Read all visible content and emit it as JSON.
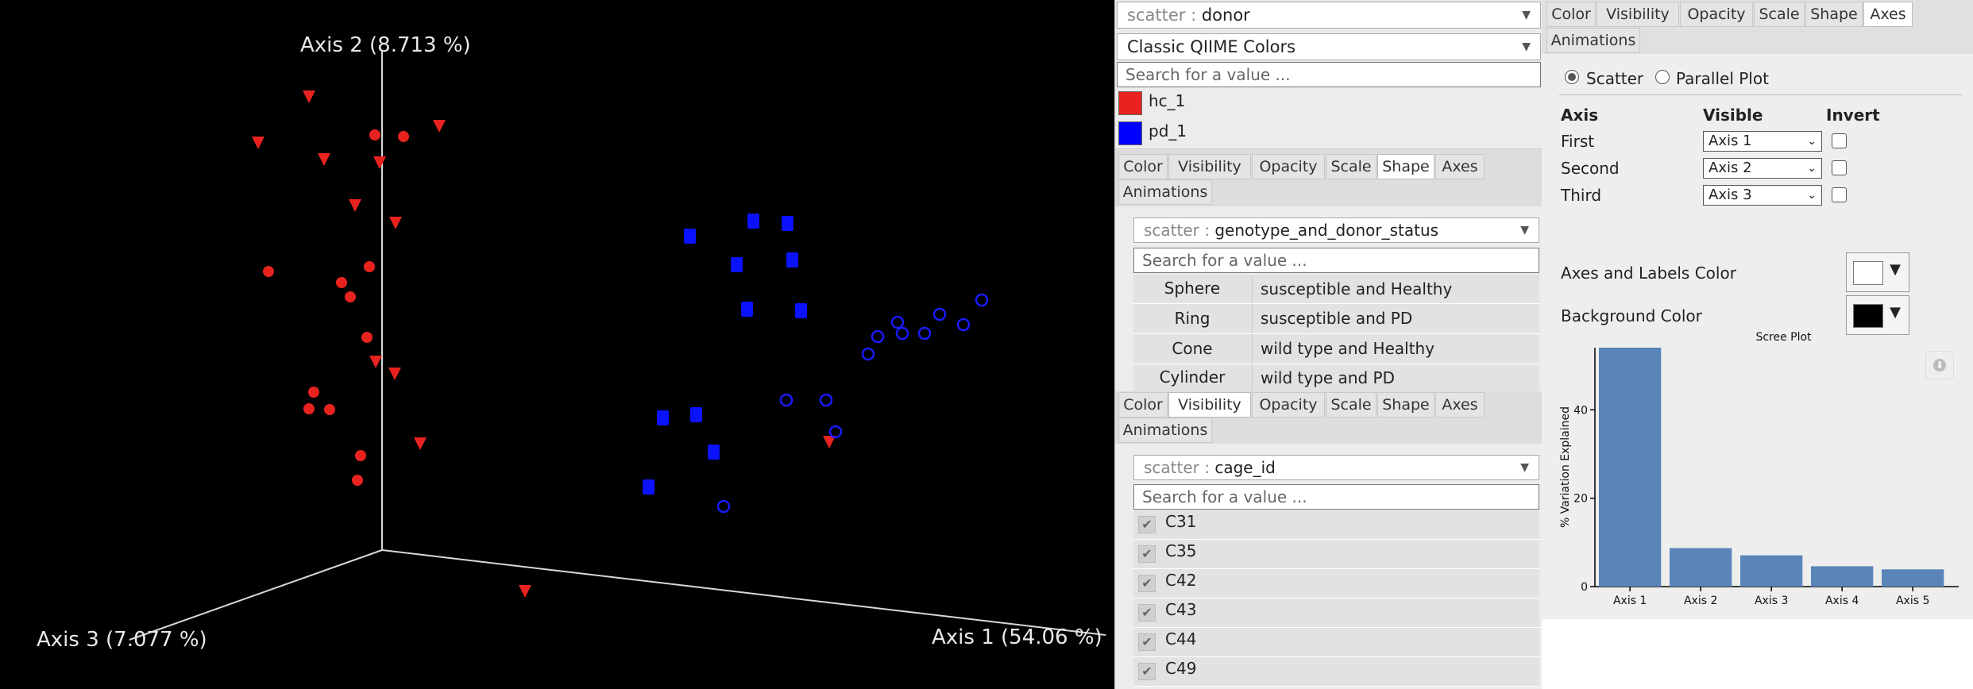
{
  "plot": {
    "axis1_label": "Axis 1 (54.06 %)",
    "axis2_label": "Axis 2 (8.713 %)",
    "axis3_label": "Axis 3 (7.077 %)"
  },
  "color_panel": {
    "metadata_prefix": "scatter",
    "metadata_value": "donor",
    "colormap": "Classic QIIME Colors",
    "search_placeholder": "Search for a value ...",
    "legend": [
      {
        "label": "hc_1",
        "color": "#e8231f"
      },
      {
        "label": "pd_1",
        "color": "#0000ff"
      }
    ]
  },
  "tabs": [
    "Color",
    "Visibility",
    "Opacity",
    "Scale",
    "Shape",
    "Axes",
    "Animations"
  ],
  "shape_panel": {
    "metadata_prefix": "scatter",
    "metadata_value": "genotype_and_donor_status",
    "search_placeholder": "Search for a value ...",
    "rows": [
      {
        "shape": "Sphere",
        "value": "susceptible and Healthy"
      },
      {
        "shape": "Ring",
        "value": "susceptible and PD"
      },
      {
        "shape": "Cone",
        "value": "wild type and Healthy"
      },
      {
        "shape": "Cylinder",
        "value": "wild type and PD"
      }
    ]
  },
  "visibility_panel": {
    "metadata_prefix": "scatter",
    "metadata_value": "cage_id",
    "search_placeholder": "Search for a value ...",
    "items": [
      "C31",
      "C35",
      "C42",
      "C43",
      "C44",
      "C49"
    ]
  },
  "axes_panel": {
    "mode_scatter": "Scatter",
    "mode_parallel": "Parallel Plot",
    "col_axis": "Axis",
    "col_visible": "Visible",
    "col_invert": "Invert",
    "rows": [
      {
        "label": "First",
        "value": "Axis 1"
      },
      {
        "label": "Second",
        "value": "Axis 2"
      },
      {
        "label": "Third",
        "value": "Axis 3"
      }
    ],
    "axes_color_label": "Axes and Labels Color",
    "axes_color": "#ffffff",
    "bg_color_label": "Background Color",
    "bg_color": "#000000"
  },
  "chart_data": {
    "type": "bar",
    "title": "Scree Plot",
    "ylabel": "% Variation Explained",
    "xlabel": "",
    "categories": [
      "Axis 1",
      "Axis 2",
      "Axis 3",
      "Axis 4",
      "Axis 5"
    ],
    "values": [
      54.06,
      8.713,
      7.077,
      4.6,
      3.9
    ],
    "ylim": [
      0,
      54.06
    ],
    "yticks": [
      0,
      20,
      40
    ],
    "bar_color": "#5a85b9"
  }
}
